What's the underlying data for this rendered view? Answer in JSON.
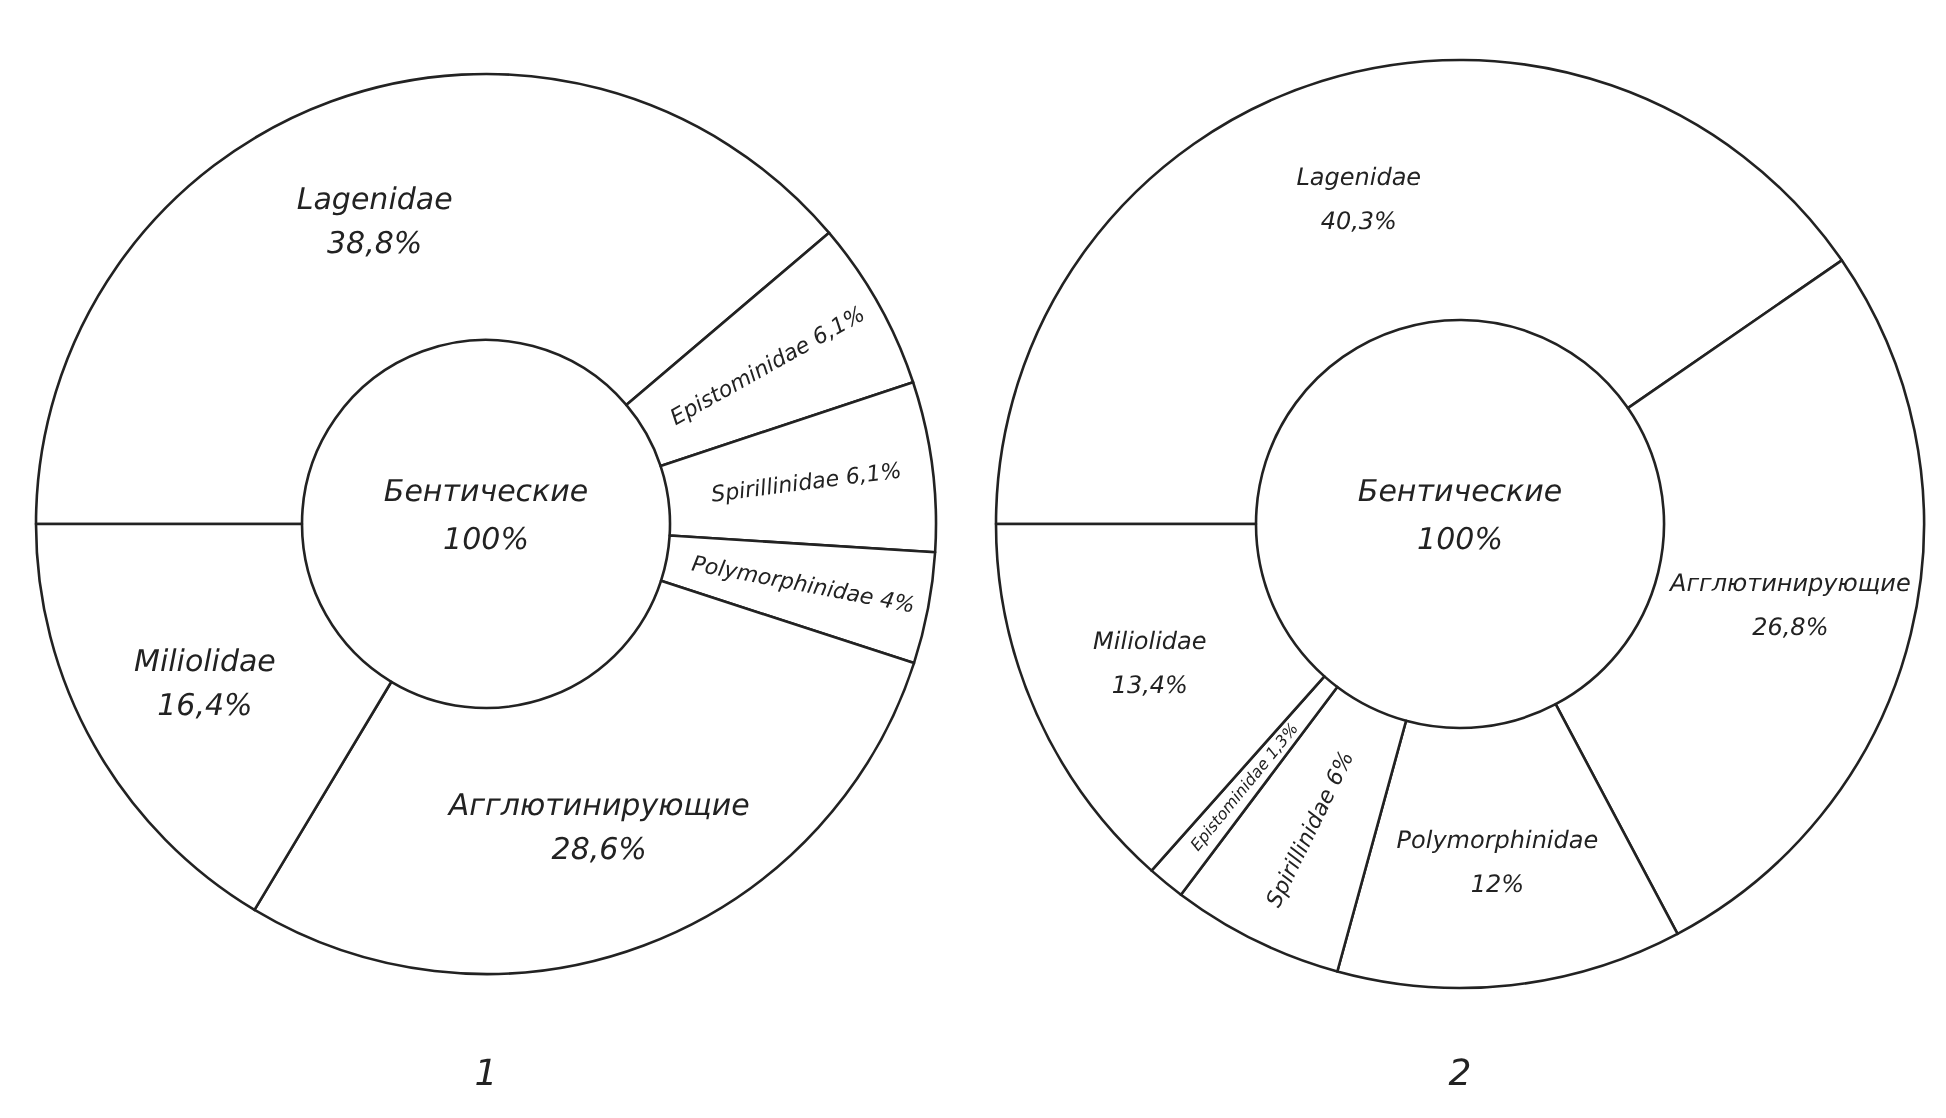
{
  "chart_data": [
    {
      "type": "donut",
      "title": "1",
      "annotations": [
        "Бентические",
        "100%"
      ],
      "categories": [
        "Lagenidae",
        "Epistominidae",
        "Spirillinidae",
        "Polymorphinidae",
        "Агглютинирующие",
        "Miliolidae"
      ],
      "values": [
        38.8,
        6.1,
        6.1,
        4,
        28.6,
        16.4
      ],
      "value_labels": [
        "38,8%",
        "6,1%",
        "6,1%",
        "4%",
        "28,6%",
        "16,4%"
      ],
      "colors": [
        "#ffffff",
        "#ffffff",
        "#ffffff",
        "#ffffff",
        "#ffffff",
        "#ffffff"
      ]
    },
    {
      "type": "donut",
      "title": "2",
      "annotations": [
        "Бентические",
        "100%"
      ],
      "categories": [
        "Lagenidae",
        "Агглютинирующие",
        "Polymorphinidae",
        "Spirillinidae",
        "Epistominidae",
        "Miliolidae"
      ],
      "values": [
        40.3,
        26.8,
        12,
        6,
        1.3,
        13.4
      ],
      "value_labels": [
        "40,3%",
        "26,8%",
        "12%",
        "6%",
        "1,3%",
        "13,4%"
      ],
      "colors": [
        "#ffffff",
        "#ffffff",
        "#ffffff",
        "#ffffff",
        "#ffffff",
        "#ffffff"
      ]
    }
  ]
}
